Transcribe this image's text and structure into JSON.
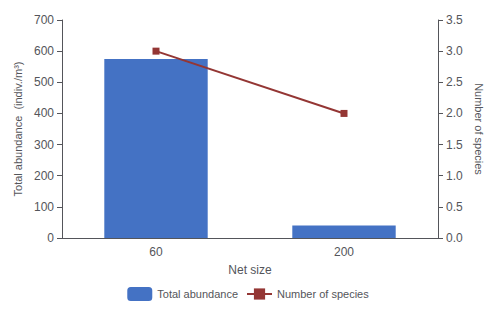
{
  "chart_data": {
    "type": "bar",
    "categories": [
      "60",
      "200"
    ],
    "xlabel": "Net size",
    "ylabel": "Total abundance  (indiv./m³)",
    "y2label": "Number of species",
    "series": [
      {
        "name": "Total abundance",
        "type": "bar",
        "color": "#4472C4",
        "values": [
          575,
          40
        ]
      },
      {
        "name": "Number of species",
        "type": "line",
        "axis": "y2",
        "color": "#943634",
        "marker": "square",
        "values": [
          3,
          2
        ]
      }
    ],
    "ylim": [
      0,
      700
    ],
    "yticks": [
      0,
      100,
      200,
      300,
      400,
      500,
      600,
      700
    ],
    "y2lim": [
      0,
      3.5
    ],
    "y2ticks": [
      {
        "value": 0,
        "label": "0.0"
      },
      0.5,
      {
        "value": 1,
        "label": "1.0"
      },
      1.5,
      {
        "value": 2,
        "label": "2.0"
      },
      2.5,
      {
        "value": 3,
        "label": "3.0"
      },
      3.5
    ],
    "grid": false,
    "legend": "bottom"
  }
}
